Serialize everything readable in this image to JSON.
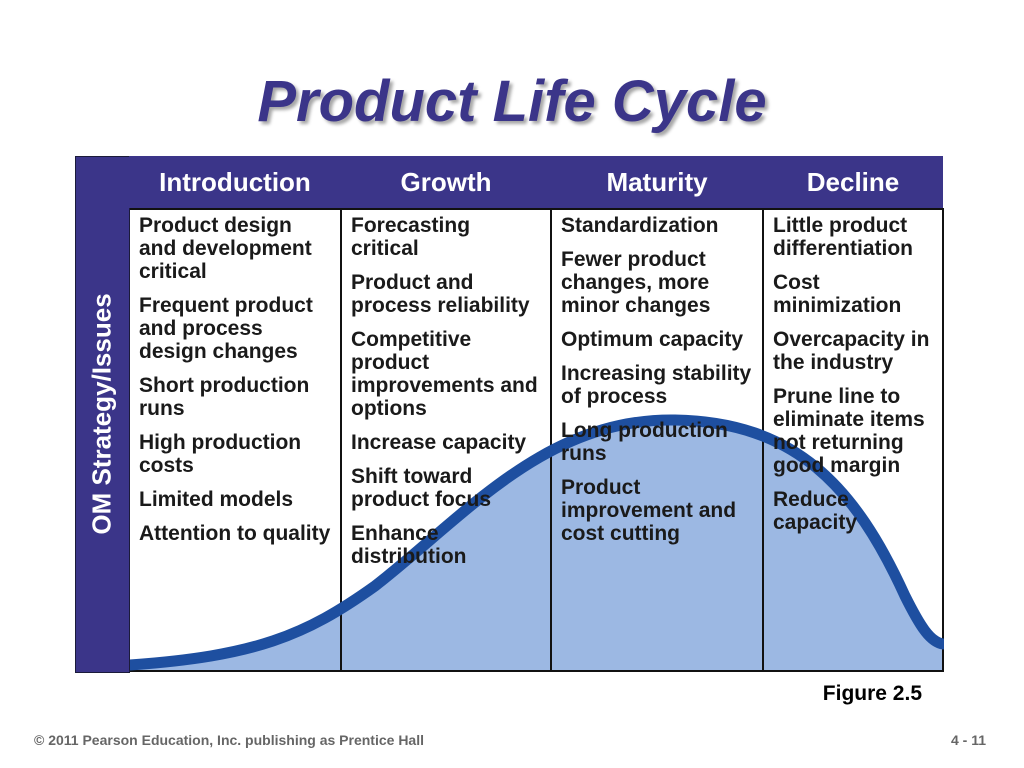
{
  "title": "Product Life Cycle",
  "side_label": "OM Strategy/Issues",
  "colors": {
    "accent": "#3b3589",
    "curve_fill": "#9cb8e3",
    "curve_stroke": "#1e4fa0"
  },
  "columns": [
    {
      "header": "Introduction",
      "items": [
        "Product design and development critical",
        "Frequent product and process design changes",
        "Short production runs",
        "High production costs",
        "Limited models",
        "Attention to quality"
      ]
    },
    {
      "header": "Growth",
      "items": [
        "Forecasting critical",
        "Product and process reliability",
        "Competitive product improvements and options",
        "Increase capacity",
        "Shift toward product focus",
        "Enhance distribution"
      ]
    },
    {
      "header": "Maturity",
      "items": [
        "Standardization",
        "Fewer product changes, more minor changes",
        "Optimum capacity",
        "Increasing stability of process",
        "Long production runs",
        "Product improvement and cost cutting"
      ]
    },
    {
      "header": "Decline",
      "items": [
        "Little product differentiation",
        "Cost minimization",
        "Overcapacity in the industry",
        "Prune line to eliminate items not returning good margin",
        "Reduce capacity"
      ]
    }
  ],
  "figure_label": "Figure 2.5",
  "footer": {
    "copyright": "© 2011 Pearson Education, Inc. publishing as Prentice Hall",
    "page": "4 - 11"
  }
}
